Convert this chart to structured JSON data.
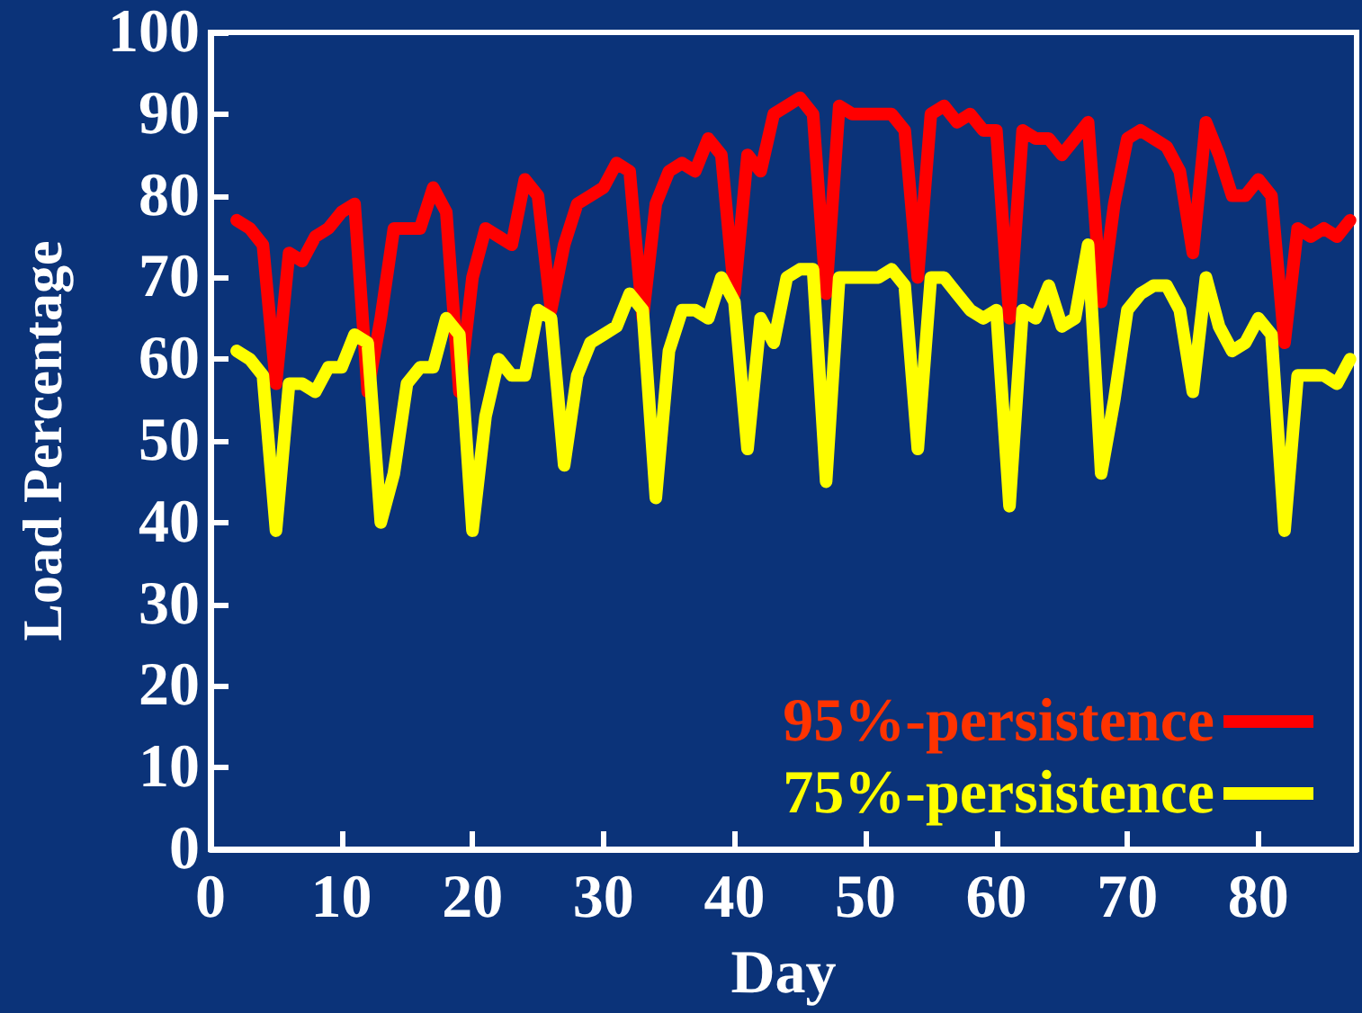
{
  "chart_data": {
    "type": "line",
    "xlabel": "Day",
    "ylabel": "Load Percentage",
    "x": [
      2,
      3,
      4,
      5,
      6,
      7,
      8,
      9,
      10,
      11,
      12,
      13,
      14,
      15,
      16,
      17,
      18,
      19,
      20,
      21,
      22,
      23,
      24,
      25,
      26,
      27,
      28,
      29,
      30,
      31,
      32,
      33,
      34,
      35,
      36,
      37,
      38,
      39,
      40,
      41,
      42,
      43,
      44,
      45,
      46,
      47,
      48,
      49,
      50,
      51,
      52,
      53,
      54,
      55,
      56,
      57,
      58,
      59,
      60,
      61,
      62,
      63,
      64,
      65,
      66,
      67,
      68,
      69,
      70,
      71,
      72,
      73,
      74,
      75,
      76,
      77,
      78,
      79,
      80,
      81,
      82,
      83,
      84,
      85,
      86,
      87
    ],
    "series": [
      {
        "name": "95%-persistence",
        "color": "#ff0000",
        "values": [
          77,
          76,
          74,
          57,
          73,
          72,
          75,
          76,
          78,
          79,
          56,
          65,
          76,
          76,
          76,
          81,
          78,
          56,
          70,
          76,
          75,
          74,
          82,
          80,
          66,
          74,
          79,
          80,
          81,
          84,
          83,
          65,
          79,
          83,
          84,
          83,
          87,
          85,
          68,
          85,
          83,
          90,
          91,
          92,
          90,
          68,
          91,
          90,
          90,
          90,
          90,
          88,
          70,
          90,
          91,
          89,
          90,
          88,
          88,
          65,
          88,
          87,
          87,
          85,
          87,
          89,
          67,
          79,
          87,
          88,
          87,
          86,
          83,
          73,
          89,
          85,
          80,
          80,
          82,
          80,
          62,
          76,
          75,
          76,
          75,
          77
        ]
      },
      {
        "name": "75%-persistence",
        "color": "#ffff00",
        "values": [
          61,
          60,
          58,
          39,
          57,
          57,
          56,
          59,
          59,
          63,
          62,
          40,
          46,
          57,
          59,
          59,
          65,
          63,
          39,
          53,
          60,
          58,
          58,
          66,
          65,
          47,
          58,
          62,
          63,
          64,
          68,
          66,
          43,
          61,
          66,
          66,
          65,
          70,
          67,
          49,
          65,
          62,
          70,
          71,
          71,
          45,
          70,
          70,
          70,
          70,
          71,
          69,
          49,
          70,
          70,
          68,
          66,
          65,
          66,
          42,
          66,
          65,
          69,
          64,
          65,
          74,
          46,
          55,
          66,
          68,
          69,
          69,
          66,
          56,
          70,
          64,
          61,
          62,
          65,
          63,
          39,
          58,
          58,
          58,
          57,
          60
        ]
      }
    ],
    "xlim": [
      0,
      87.5
    ],
    "xticks": [
      0,
      10,
      20,
      30,
      40,
      50,
      60,
      70,
      80
    ],
    "ylim": [
      0,
      100
    ],
    "yticks": [
      0,
      10,
      20,
      30,
      40,
      50,
      60,
      70,
      80,
      90,
      100
    ],
    "legend": "bottom right",
    "marker": "none",
    "line_style": "solid",
    "grid": false
  }
}
